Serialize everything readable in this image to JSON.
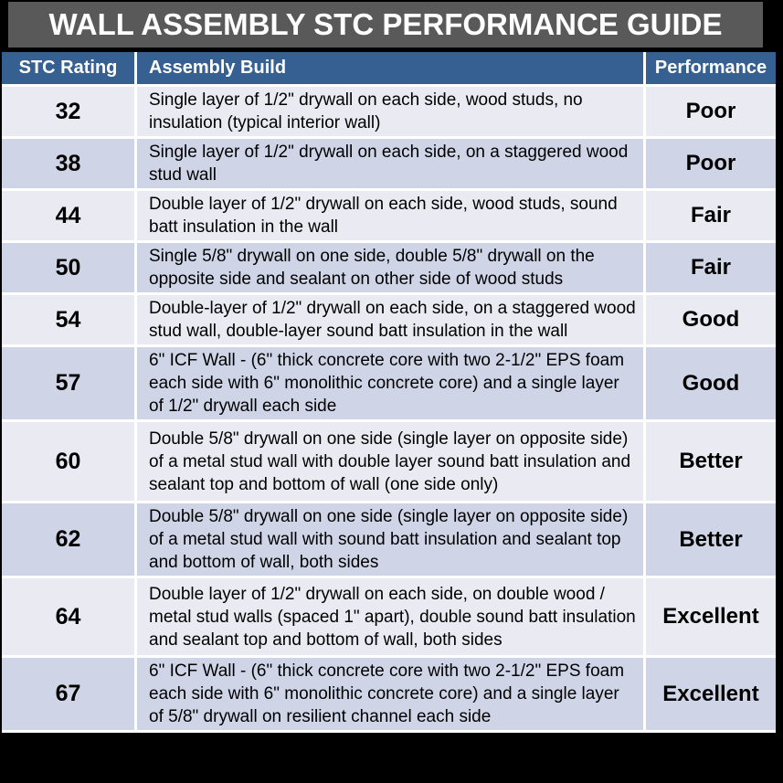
{
  "colors": {
    "page_bg": "#000000",
    "title_bg": "#595959",
    "title_text": "#ffffff",
    "header_bg": "#376092",
    "header_text": "#ffffff",
    "row_light": "#e9eaf2",
    "row_dark": "#cfd5e7",
    "body_text": "#000000",
    "separator": "#ffffff"
  },
  "chart_data": {
    "type": "table",
    "title": "WALL ASSEMBLY STC PERFORMANCE GUIDE",
    "columns": [
      "STC Rating",
      "Assembly Build",
      "Performance"
    ],
    "rows": [
      [
        "32",
        "Single layer of 1/2\" drywall on each side, wood studs, no insulation (typical interior wall)",
        "Poor"
      ],
      [
        "38",
        "Single layer of 1/2\" drywall on each side, on a staggered wood stud wall",
        "Poor"
      ],
      [
        "44",
        "Double layer of 1/2\" drywall on each side, wood studs, sound batt insulation in the wall",
        "Fair"
      ],
      [
        "50",
        "Single 5/8\" drywall on one side, double 5/8\" drywall on the opposite side and sealant on other side of wood studs",
        "Fair"
      ],
      [
        "54",
        "Double-layer of 1/2\" drywall on each side, on a staggered wood stud wall, double-layer sound batt insulation in the wall",
        "Good"
      ],
      [
        "57",
        "6\" ICF Wall - (6\" thick concrete core with two 2-1/2\" EPS foam each side with 6\" monolithic concrete core) and a single layer of 1/2\" drywall each side",
        "Good"
      ],
      [
        "60",
        "Double 5/8\" drywall on one side (single layer on opposite side) of a metal stud wall with double layer sound batt insulation and sealant top and bottom of wall (one side only)",
        "Better"
      ],
      [
        "62",
        "Double 5/8\" drywall on one side (single layer on opposite side) of a metal stud wall with sound batt insulation and sealant top and bottom of wall, both sides",
        "Better"
      ],
      [
        "64",
        "Double layer of 1/2\" drywall on each side, on double wood / metal stud walls (spaced 1\" apart), double sound batt insulation and sealant top and bottom of wall, both sides",
        "Excellent"
      ],
      [
        "67",
        "6\" ICF Wall - (6\" thick concrete core with two 2-1/2\" EPS foam each side with 6\" monolithic concrete core) and a single layer of 5/8\" drywall on resilient channel each side",
        "Excellent"
      ]
    ]
  }
}
